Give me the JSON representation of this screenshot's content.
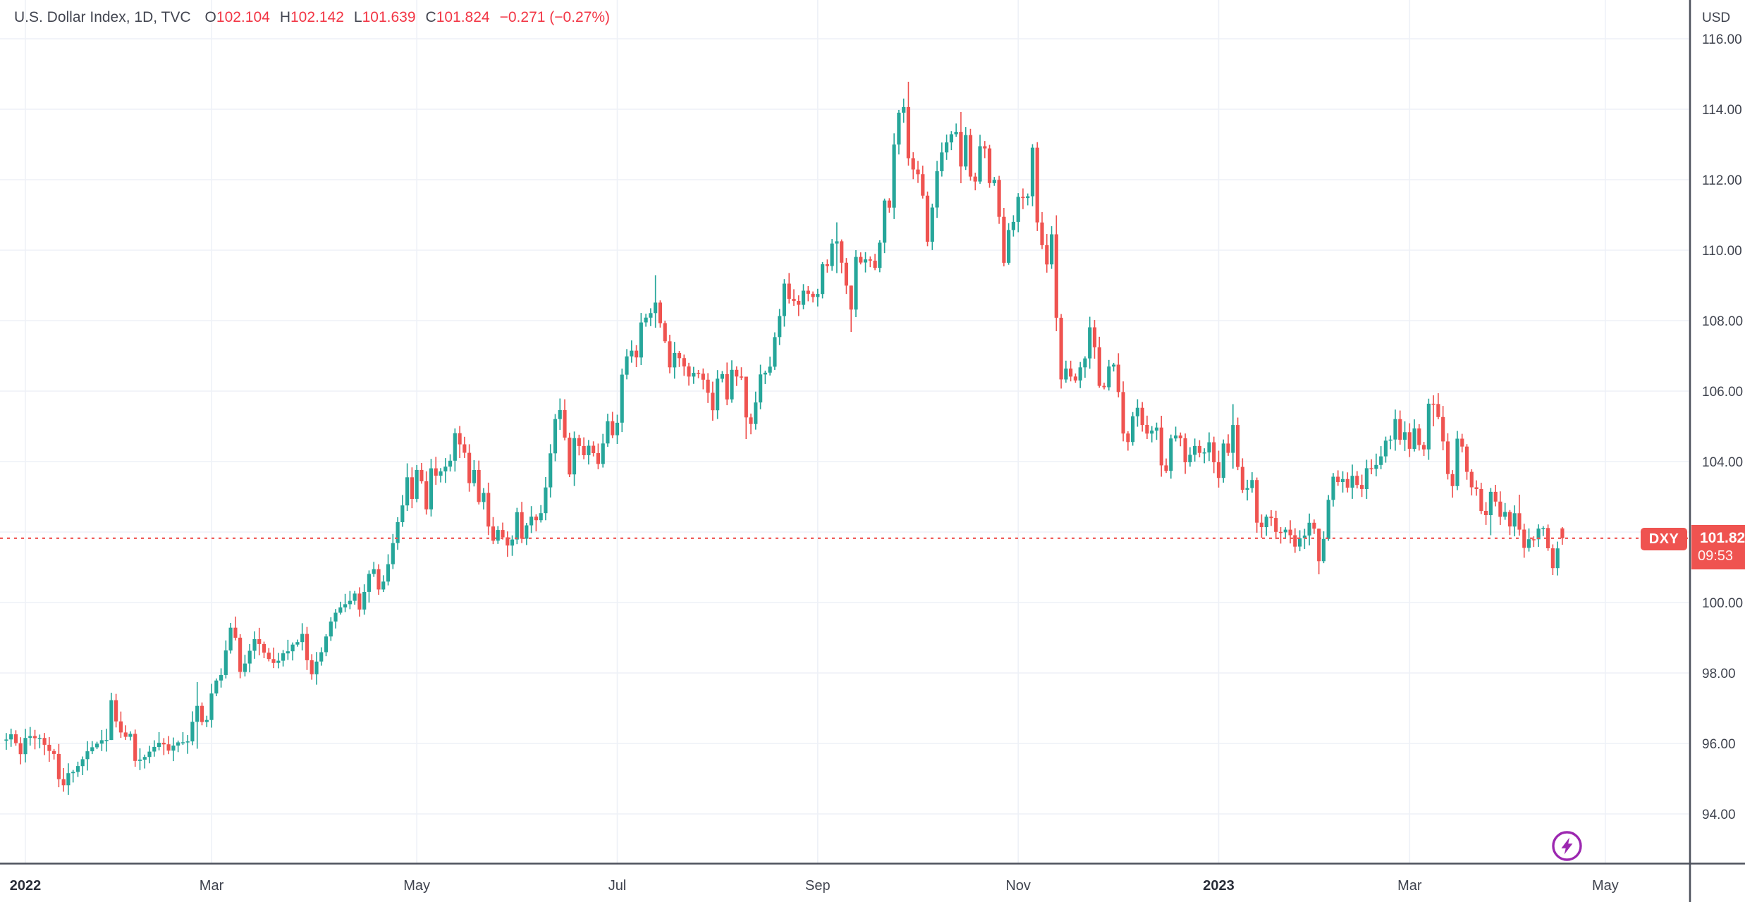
{
  "legend": {
    "title": "U.S. Dollar Index, 1D, TVC",
    "open_label": "O",
    "open_value": "102.104",
    "high_label": "H",
    "high_value": "102.142",
    "low_label": "L",
    "low_value": "101.639",
    "close_label": "C",
    "close_value": "101.824",
    "change_text": "−0.271 (−0.27%)"
  },
  "price_line": {
    "series_tag": "DXY",
    "tag_price": "101.82",
    "tag_countdown": "09:53"
  },
  "price_axis": {
    "currency_label": "USD",
    "ticks": [
      {
        "price": 116,
        "label": "116.00"
      },
      {
        "price": 114,
        "label": "114.00"
      },
      {
        "price": 112,
        "label": "112.00"
      },
      {
        "price": 110,
        "label": "110.00"
      },
      {
        "price": 108,
        "label": "108.00"
      },
      {
        "price": 106,
        "label": "106.00"
      },
      {
        "price": 104,
        "label": "104.00"
      },
      {
        "price": 102,
        "label": "102.00"
      },
      {
        "price": 100,
        "label": "100.00"
      },
      {
        "price": 98,
        "label": "98.00"
      },
      {
        "price": 96,
        "label": "96.00"
      },
      {
        "price": 94,
        "label": "94.00"
      }
    ]
  },
  "time_axis": {
    "ticks": [
      {
        "label": "2022",
        "day": 0,
        "bold": true
      },
      {
        "label": "Mar",
        "day": 39,
        "bold": false
      },
      {
        "label": "May",
        "day": 82,
        "bold": false
      },
      {
        "label": "Jul",
        "day": 124,
        "bold": false
      },
      {
        "label": "Sep",
        "day": 166,
        "bold": false
      },
      {
        "label": "Nov",
        "day": 208,
        "bold": false
      },
      {
        "label": "2023",
        "day": 250,
        "bold": true
      },
      {
        "label": "Mar",
        "day": 290,
        "bold": false
      },
      {
        "label": "May",
        "day": 331,
        "bold": false
      }
    ]
  },
  "colors": {
    "up": "#26a69a",
    "down": "#ef5350",
    "grid": "#eef1f7",
    "axis_text": "#3f434e",
    "axis_line": "#4d515c",
    "year_text": "#2a2e39",
    "price_line": "#ef5350",
    "tag_bg": "#ef5350",
    "legend_value": "#f23645",
    "title_text": "#434651",
    "accent_purple": "#9c27b0"
  },
  "chart_data": {
    "type": "candlestick",
    "title": "U.S. Dollar Index",
    "interval": "1D",
    "exchange": "TVC",
    "currency": "USD",
    "xlabel": "",
    "ylabel": "USD",
    "ylim": [
      92.6,
      117.1
    ],
    "grid": true,
    "x_range": "Dec 2021 – Apr 2023 (daily bars)",
    "last_bar": {
      "open": 102.104,
      "high": 102.142,
      "low": 101.639,
      "close": 101.824,
      "change": "−0.271",
      "change_pct": "−0.27%"
    },
    "current_price": 101.824,
    "wick_seed": 42,
    "close_jitter": 0.12,
    "anchors": [
      [
        -4,
        96.1
      ],
      [
        -3,
        96.2
      ],
      [
        -2,
        95.95
      ],
      [
        -1,
        95.7
      ],
      [
        0,
        96.2
      ],
      [
        1,
        96.25
      ],
      [
        3,
        96.1
      ],
      [
        5,
        95.75
      ],
      [
        6,
        95.65
      ],
      [
        7,
        94.95
      ],
      [
        8,
        94.85
      ],
      [
        9,
        95.15
      ],
      [
        10,
        95.2
      ],
      [
        12,
        95.6
      ],
      [
        14,
        95.85
      ],
      [
        16,
        96.05
      ],
      [
        17,
        96.1
      ],
      [
        18,
        97.25
      ],
      [
        19,
        96.65
      ],
      [
        20,
        96.3
      ],
      [
        21,
        96.15
      ],
      [
        22,
        96.25
      ],
      [
        23,
        95.5
      ],
      [
        25,
        95.6
      ],
      [
        27,
        95.85
      ],
      [
        28,
        96.05
      ],
      [
        30,
        95.8
      ],
      [
        32,
        96.0
      ],
      [
        34,
        96.1
      ],
      [
        36,
        97.1
      ],
      [
        37,
        96.6
      ],
      [
        38,
        96.7
      ],
      [
        39,
        97.4
      ],
      [
        40,
        97.75
      ],
      [
        41,
        98.0
      ],
      [
        42,
        98.6
      ],
      [
        43,
        99.25
      ],
      [
        44,
        99.0
      ],
      [
        45,
        98.05
      ],
      [
        46,
        98.3
      ],
      [
        47,
        98.6
      ],
      [
        48,
        99.0
      ],
      [
        50,
        98.6
      ],
      [
        52,
        98.25
      ],
      [
        54,
        98.5
      ],
      [
        56,
        98.75
      ],
      [
        58,
        99.1
      ],
      [
        59,
        98.4
      ],
      [
        60,
        97.95
      ],
      [
        61,
        98.35
      ],
      [
        62,
        98.6
      ],
      [
        64,
        99.5
      ],
      [
        66,
        99.8
      ],
      [
        68,
        100.05
      ],
      [
        69,
        100.3
      ],
      [
        70,
        99.85
      ],
      [
        71,
        100.3
      ],
      [
        72,
        100.8
      ],
      [
        73,
        100.95
      ],
      [
        74,
        100.35
      ],
      [
        75,
        100.6
      ],
      [
        76,
        101.1
      ],
      [
        77,
        101.7
      ],
      [
        78,
        102.3
      ],
      [
        79,
        102.8
      ],
      [
        80,
        103.6
      ],
      [
        81,
        102.95
      ],
      [
        82,
        103.75
      ],
      [
        83,
        103.4
      ],
      [
        84,
        102.6
      ],
      [
        85,
        103.75
      ],
      [
        86,
        103.65
      ],
      [
        87,
        103.75
      ],
      [
        88,
        103.9
      ],
      [
        89,
        104.0
      ],
      [
        90,
        104.85
      ],
      [
        91,
        104.5
      ],
      [
        92,
        104.2
      ],
      [
        93,
        103.4
      ],
      [
        94,
        103.8
      ],
      [
        95,
        102.9
      ],
      [
        96,
        103.15
      ],
      [
        97,
        102.1
      ],
      [
        98,
        101.8
      ],
      [
        99,
        102.1
      ],
      [
        100,
        101.8
      ],
      [
        101,
        101.65
      ],
      [
        102,
        101.75
      ],
      [
        103,
        102.55
      ],
      [
        104,
        101.75
      ],
      [
        105,
        102.15
      ],
      [
        106,
        102.45
      ],
      [
        107,
        102.3
      ],
      [
        108,
        102.55
      ],
      [
        109,
        103.3
      ],
      [
        110,
        104.2
      ],
      [
        111,
        105.2
      ],
      [
        112,
        105.5
      ],
      [
        113,
        104.7
      ],
      [
        114,
        103.65
      ],
      [
        115,
        104.7
      ],
      [
        116,
        104.4
      ],
      [
        117,
        104.2
      ],
      [
        118,
        104.4
      ],
      [
        119,
        104.2
      ],
      [
        120,
        103.95
      ],
      [
        121,
        104.5
      ],
      [
        122,
        105.1
      ],
      [
        123,
        104.7
      ],
      [
        124,
        105.1
      ],
      [
        125,
        106.5
      ],
      [
        126,
        107.0
      ],
      [
        127,
        107.1
      ],
      [
        128,
        107.0
      ],
      [
        129,
        108.0
      ],
      [
        130,
        108.1
      ],
      [
        131,
        108.25
      ],
      [
        132,
        108.55
      ],
      [
        133,
        107.9
      ],
      [
        134,
        107.4
      ],
      [
        135,
        106.7
      ],
      [
        136,
        107.1
      ],
      [
        137,
        106.9
      ],
      [
        138,
        106.7
      ],
      [
        139,
        106.45
      ],
      [
        140,
        106.5
      ],
      [
        141,
        106.45
      ],
      [
        142,
        106.35
      ],
      [
        143,
        105.9
      ],
      [
        144,
        105.45
      ],
      [
        145,
        106.35
      ],
      [
        146,
        106.5
      ],
      [
        147,
        105.8
      ],
      [
        148,
        106.6
      ],
      [
        149,
        106.4
      ],
      [
        150,
        106.35
      ],
      [
        151,
        105.2
      ],
      [
        152,
        105.1
      ],
      [
        153,
        105.65
      ],
      [
        154,
        106.5
      ],
      [
        155,
        106.5
      ],
      [
        156,
        106.65
      ],
      [
        157,
        107.5
      ],
      [
        158,
        108.1
      ],
      [
        159,
        109.0
      ],
      [
        160,
        108.65
      ],
      [
        161,
        108.6
      ],
      [
        162,
        108.45
      ],
      [
        163,
        108.8
      ],
      [
        164,
        108.8
      ],
      [
        165,
        108.7
      ],
      [
        166,
        108.7
      ],
      [
        167,
        109.6
      ],
      [
        168,
        109.5
      ],
      [
        169,
        110.2
      ],
      [
        170,
        110.25
      ],
      [
        171,
        109.7
      ],
      [
        172,
        109.0
      ],
      [
        173,
        108.3
      ],
      [
        174,
        109.85
      ],
      [
        175,
        109.6
      ],
      [
        176,
        109.75
      ],
      [
        177,
        109.65
      ],
      [
        178,
        109.55
      ],
      [
        179,
        110.2
      ],
      [
        180,
        111.35
      ],
      [
        181,
        111.2
      ],
      [
        182,
        112.95
      ],
      [
        183,
        113.95
      ],
      [
        184,
        114.1
      ],
      [
        185,
        112.6
      ],
      [
        186,
        112.25
      ],
      [
        187,
        112.1
      ],
      [
        188,
        111.6
      ],
      [
        189,
        110.2
      ],
      [
        190,
        111.2
      ],
      [
        191,
        112.25
      ],
      [
        192,
        112.8
      ],
      [
        193,
        113.1
      ],
      [
        194,
        113.25
      ],
      [
        195,
        113.3
      ],
      [
        196,
        112.35
      ],
      [
        197,
        113.3
      ],
      [
        198,
        112.05
      ],
      [
        199,
        112.0
      ],
      [
        200,
        112.95
      ],
      [
        201,
        112.9
      ],
      [
        202,
        111.85
      ],
      [
        203,
        111.95
      ],
      [
        204,
        110.95
      ],
      [
        205,
        109.7
      ],
      [
        206,
        110.55
      ],
      [
        207,
        110.75
      ],
      [
        208,
        111.5
      ],
      [
        209,
        111.45
      ],
      [
        210,
        111.5
      ],
      [
        211,
        112.9
      ],
      [
        212,
        110.8
      ],
      [
        213,
        110.15
      ],
      [
        214,
        109.6
      ],
      [
        215,
        110.5
      ],
      [
        216,
        108.1
      ],
      [
        217,
        106.3
      ],
      [
        218,
        106.65
      ],
      [
        219,
        106.4
      ],
      [
        220,
        106.25
      ],
      [
        221,
        106.65
      ],
      [
        222,
        106.9
      ],
      [
        223,
        107.8
      ],
      [
        224,
        107.2
      ],
      [
        225,
        106.1
      ],
      [
        226,
        106.05
      ],
      [
        227,
        106.65
      ],
      [
        228,
        106.8
      ],
      [
        229,
        105.95
      ],
      [
        230,
        104.75
      ],
      [
        231,
        104.55
      ],
      [
        232,
        105.3
      ],
      [
        233,
        105.55
      ],
      [
        234,
        105.1
      ],
      [
        235,
        104.75
      ],
      [
        236,
        104.9
      ],
      [
        237,
        105.0
      ],
      [
        238,
        103.95
      ],
      [
        239,
        103.75
      ],
      [
        240,
        104.6
      ],
      [
        241,
        104.7
      ],
      [
        242,
        104.7
      ],
      [
        243,
        104.0
      ],
      [
        244,
        104.2
      ],
      [
        245,
        104.4
      ],
      [
        246,
        104.3
      ],
      [
        247,
        104.2
      ],
      [
        248,
        104.5
      ],
      [
        249,
        104.0
      ],
      [
        250,
        103.5
      ],
      [
        251,
        104.5
      ],
      [
        252,
        104.2
      ],
      [
        253,
        105.0
      ],
      [
        254,
        103.9
      ],
      [
        255,
        103.2
      ],
      [
        256,
        103.25
      ],
      [
        257,
        103.45
      ],
      [
        258,
        102.25
      ],
      [
        259,
        102.2
      ],
      [
        260,
        102.4
      ],
      [
        261,
        102.35
      ],
      [
        262,
        102.05
      ],
      [
        263,
        102.0
      ],
      [
        264,
        102.1
      ],
      [
        265,
        101.9
      ],
      [
        266,
        101.6
      ],
      [
        267,
        101.85
      ],
      [
        268,
        101.9
      ],
      [
        269,
        102.25
      ],
      [
        270,
        102.1
      ],
      [
        271,
        101.15
      ],
      [
        272,
        101.75
      ],
      [
        273,
        102.9
      ],
      [
        274,
        103.6
      ],
      [
        275,
        103.4
      ],
      [
        276,
        103.45
      ],
      [
        277,
        103.2
      ],
      [
        278,
        103.6
      ],
      [
        279,
        103.3
      ],
      [
        280,
        103.25
      ],
      [
        281,
        103.8
      ],
      [
        282,
        103.8
      ],
      [
        283,
        103.85
      ],
      [
        284,
        104.15
      ],
      [
        285,
        104.55
      ],
      [
        286,
        104.6
      ],
      [
        287,
        105.2
      ],
      [
        288,
        104.65
      ],
      [
        289,
        104.85
      ],
      [
        290,
        104.35
      ],
      [
        291,
        104.95
      ],
      [
        292,
        104.5
      ],
      [
        293,
        104.3
      ],
      [
        294,
        105.6
      ],
      [
        295,
        105.65
      ],
      [
        296,
        105.25
      ],
      [
        297,
        104.6
      ],
      [
        298,
        103.6
      ],
      [
        299,
        103.25
      ],
      [
        300,
        104.65
      ],
      [
        301,
        104.4
      ],
      [
        302,
        103.7
      ],
      [
        303,
        103.3
      ],
      [
        304,
        103.25
      ],
      [
        305,
        102.55
      ],
      [
        306,
        102.5
      ],
      [
        307,
        103.1
      ],
      [
        308,
        102.85
      ],
      [
        309,
        102.45
      ],
      [
        310,
        102.6
      ],
      [
        311,
        102.15
      ],
      [
        312,
        102.5
      ],
      [
        313,
        102.05
      ],
      [
        314,
        101.55
      ],
      [
        315,
        101.85
      ],
      [
        316,
        101.85
      ],
      [
        317,
        102.1
      ],
      [
        318,
        102.1
      ],
      [
        319,
        101.5
      ],
      [
        320,
        100.95
      ],
      [
        321,
        101.55
      ],
      [
        322,
        101.824
      ]
    ],
    "wick_overrides": {
      "8": [
        95.3,
        94.63
      ],
      "18": [
        97.44,
        96.3
      ],
      "36": [
        97.74,
        95.85
      ],
      "43": [
        99.42,
        98.55
      ],
      "45": [
        99.1,
        97.85
      ],
      "80": [
        103.95,
        102.6
      ],
      "91": [
        105.01,
        104.1
      ],
      "112": [
        105.79,
        104.9
      ],
      "132": [
        109.29,
        107.8
      ],
      "151": [
        106.4,
        104.64
      ],
      "170": [
        110.79,
        109.35
      ],
      "173": [
        108.6,
        107.68
      ],
      "174": [
        110.0,
        108.1
      ],
      "185": [
        114.78,
        112.4
      ],
      "196": [
        113.92,
        111.9
      ],
      "205": [
        111.2,
        109.54
      ],
      "216": [
        110.99,
        107.7
      ],
      "238": [
        105.3,
        103.57
      ],
      "253": [
        105.63,
        103.8
      ],
      "271": [
        102.1,
        100.8
      ],
      "295": [
        105.88,
        105.0
      ],
      "307": [
        103.25,
        101.91
      ],
      "313": [
        103.06,
        101.9
      ],
      "320": [
        101.65,
        100.78
      ]
    }
  }
}
